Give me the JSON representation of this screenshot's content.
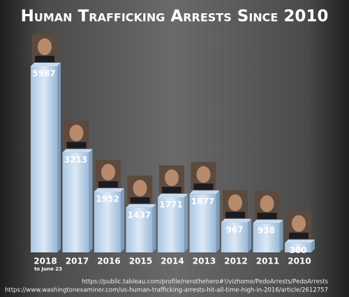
{
  "chart_data": {
    "type": "bar",
    "title": "Human Trafficking Arrests Since 2010",
    "categories": [
      "2018",
      "2017",
      "2016",
      "2015",
      "2014",
      "2013",
      "2012",
      "2011",
      "2010"
    ],
    "category_note": "to June 23",
    "values": [
      5987,
      3213,
      1952,
      1437,
      1771,
      1877,
      967,
      938,
      300
    ],
    "color": "#c9dcef",
    "sources": [
      "https://public.tableau.com/profile/nerothehero#!/vizhome/PedoArrests/PedoArrests",
      "https://www.washingtonexaminer.com/us-human-trafficking-arrests-hit-all-time-high-in-2016/article/2612757"
    ]
  }
}
